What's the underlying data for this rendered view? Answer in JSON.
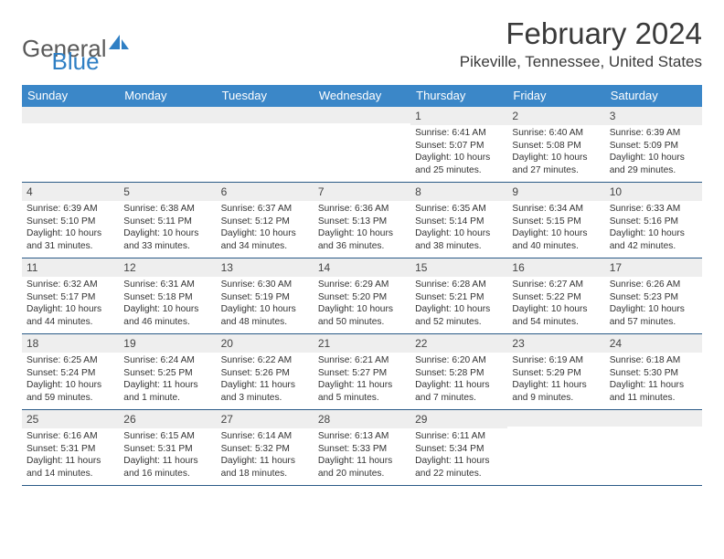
{
  "logo": {
    "text_general": "General",
    "text_blue": "Blue"
  },
  "title": {
    "month": "February 2024",
    "location": "Pikeville, Tennessee, United States"
  },
  "weekdays": [
    "Sunday",
    "Monday",
    "Tuesday",
    "Wednesday",
    "Thursday",
    "Friday",
    "Saturday"
  ],
  "colors": {
    "header_bg": "#3b87c8",
    "header_text": "#ffffff",
    "daynum_bg": "#eeeeee",
    "row_border": "#2a5a87",
    "logo_gray": "#5a5a5a",
    "logo_blue": "#2f7fc4"
  },
  "weeks": [
    [
      {
        "day": "",
        "sunrise": "",
        "sunset": "",
        "daylight": ""
      },
      {
        "day": "",
        "sunrise": "",
        "sunset": "",
        "daylight": ""
      },
      {
        "day": "",
        "sunrise": "",
        "sunset": "",
        "daylight": ""
      },
      {
        "day": "",
        "sunrise": "",
        "sunset": "",
        "daylight": ""
      },
      {
        "day": "1",
        "sunrise": "Sunrise: 6:41 AM",
        "sunset": "Sunset: 5:07 PM",
        "daylight": "Daylight: 10 hours and 25 minutes."
      },
      {
        "day": "2",
        "sunrise": "Sunrise: 6:40 AM",
        "sunset": "Sunset: 5:08 PM",
        "daylight": "Daylight: 10 hours and 27 minutes."
      },
      {
        "day": "3",
        "sunrise": "Sunrise: 6:39 AM",
        "sunset": "Sunset: 5:09 PM",
        "daylight": "Daylight: 10 hours and 29 minutes."
      }
    ],
    [
      {
        "day": "4",
        "sunrise": "Sunrise: 6:39 AM",
        "sunset": "Sunset: 5:10 PM",
        "daylight": "Daylight: 10 hours and 31 minutes."
      },
      {
        "day": "5",
        "sunrise": "Sunrise: 6:38 AM",
        "sunset": "Sunset: 5:11 PM",
        "daylight": "Daylight: 10 hours and 33 minutes."
      },
      {
        "day": "6",
        "sunrise": "Sunrise: 6:37 AM",
        "sunset": "Sunset: 5:12 PM",
        "daylight": "Daylight: 10 hours and 34 minutes."
      },
      {
        "day": "7",
        "sunrise": "Sunrise: 6:36 AM",
        "sunset": "Sunset: 5:13 PM",
        "daylight": "Daylight: 10 hours and 36 minutes."
      },
      {
        "day": "8",
        "sunrise": "Sunrise: 6:35 AM",
        "sunset": "Sunset: 5:14 PM",
        "daylight": "Daylight: 10 hours and 38 minutes."
      },
      {
        "day": "9",
        "sunrise": "Sunrise: 6:34 AM",
        "sunset": "Sunset: 5:15 PM",
        "daylight": "Daylight: 10 hours and 40 minutes."
      },
      {
        "day": "10",
        "sunrise": "Sunrise: 6:33 AM",
        "sunset": "Sunset: 5:16 PM",
        "daylight": "Daylight: 10 hours and 42 minutes."
      }
    ],
    [
      {
        "day": "11",
        "sunrise": "Sunrise: 6:32 AM",
        "sunset": "Sunset: 5:17 PM",
        "daylight": "Daylight: 10 hours and 44 minutes."
      },
      {
        "day": "12",
        "sunrise": "Sunrise: 6:31 AM",
        "sunset": "Sunset: 5:18 PM",
        "daylight": "Daylight: 10 hours and 46 minutes."
      },
      {
        "day": "13",
        "sunrise": "Sunrise: 6:30 AM",
        "sunset": "Sunset: 5:19 PM",
        "daylight": "Daylight: 10 hours and 48 minutes."
      },
      {
        "day": "14",
        "sunrise": "Sunrise: 6:29 AM",
        "sunset": "Sunset: 5:20 PM",
        "daylight": "Daylight: 10 hours and 50 minutes."
      },
      {
        "day": "15",
        "sunrise": "Sunrise: 6:28 AM",
        "sunset": "Sunset: 5:21 PM",
        "daylight": "Daylight: 10 hours and 52 minutes."
      },
      {
        "day": "16",
        "sunrise": "Sunrise: 6:27 AM",
        "sunset": "Sunset: 5:22 PM",
        "daylight": "Daylight: 10 hours and 54 minutes."
      },
      {
        "day": "17",
        "sunrise": "Sunrise: 6:26 AM",
        "sunset": "Sunset: 5:23 PM",
        "daylight": "Daylight: 10 hours and 57 minutes."
      }
    ],
    [
      {
        "day": "18",
        "sunrise": "Sunrise: 6:25 AM",
        "sunset": "Sunset: 5:24 PM",
        "daylight": "Daylight: 10 hours and 59 minutes."
      },
      {
        "day": "19",
        "sunrise": "Sunrise: 6:24 AM",
        "sunset": "Sunset: 5:25 PM",
        "daylight": "Daylight: 11 hours and 1 minute."
      },
      {
        "day": "20",
        "sunrise": "Sunrise: 6:22 AM",
        "sunset": "Sunset: 5:26 PM",
        "daylight": "Daylight: 11 hours and 3 minutes."
      },
      {
        "day": "21",
        "sunrise": "Sunrise: 6:21 AM",
        "sunset": "Sunset: 5:27 PM",
        "daylight": "Daylight: 11 hours and 5 minutes."
      },
      {
        "day": "22",
        "sunrise": "Sunrise: 6:20 AM",
        "sunset": "Sunset: 5:28 PM",
        "daylight": "Daylight: 11 hours and 7 minutes."
      },
      {
        "day": "23",
        "sunrise": "Sunrise: 6:19 AM",
        "sunset": "Sunset: 5:29 PM",
        "daylight": "Daylight: 11 hours and 9 minutes."
      },
      {
        "day": "24",
        "sunrise": "Sunrise: 6:18 AM",
        "sunset": "Sunset: 5:30 PM",
        "daylight": "Daylight: 11 hours and 11 minutes."
      }
    ],
    [
      {
        "day": "25",
        "sunrise": "Sunrise: 6:16 AM",
        "sunset": "Sunset: 5:31 PM",
        "daylight": "Daylight: 11 hours and 14 minutes."
      },
      {
        "day": "26",
        "sunrise": "Sunrise: 6:15 AM",
        "sunset": "Sunset: 5:31 PM",
        "daylight": "Daylight: 11 hours and 16 minutes."
      },
      {
        "day": "27",
        "sunrise": "Sunrise: 6:14 AM",
        "sunset": "Sunset: 5:32 PM",
        "daylight": "Daylight: 11 hours and 18 minutes."
      },
      {
        "day": "28",
        "sunrise": "Sunrise: 6:13 AM",
        "sunset": "Sunset: 5:33 PM",
        "daylight": "Daylight: 11 hours and 20 minutes."
      },
      {
        "day": "29",
        "sunrise": "Sunrise: 6:11 AM",
        "sunset": "Sunset: 5:34 PM",
        "daylight": "Daylight: 11 hours and 22 minutes."
      },
      {
        "day": "",
        "sunrise": "",
        "sunset": "",
        "daylight": ""
      },
      {
        "day": "",
        "sunrise": "",
        "sunset": "",
        "daylight": ""
      }
    ]
  ]
}
